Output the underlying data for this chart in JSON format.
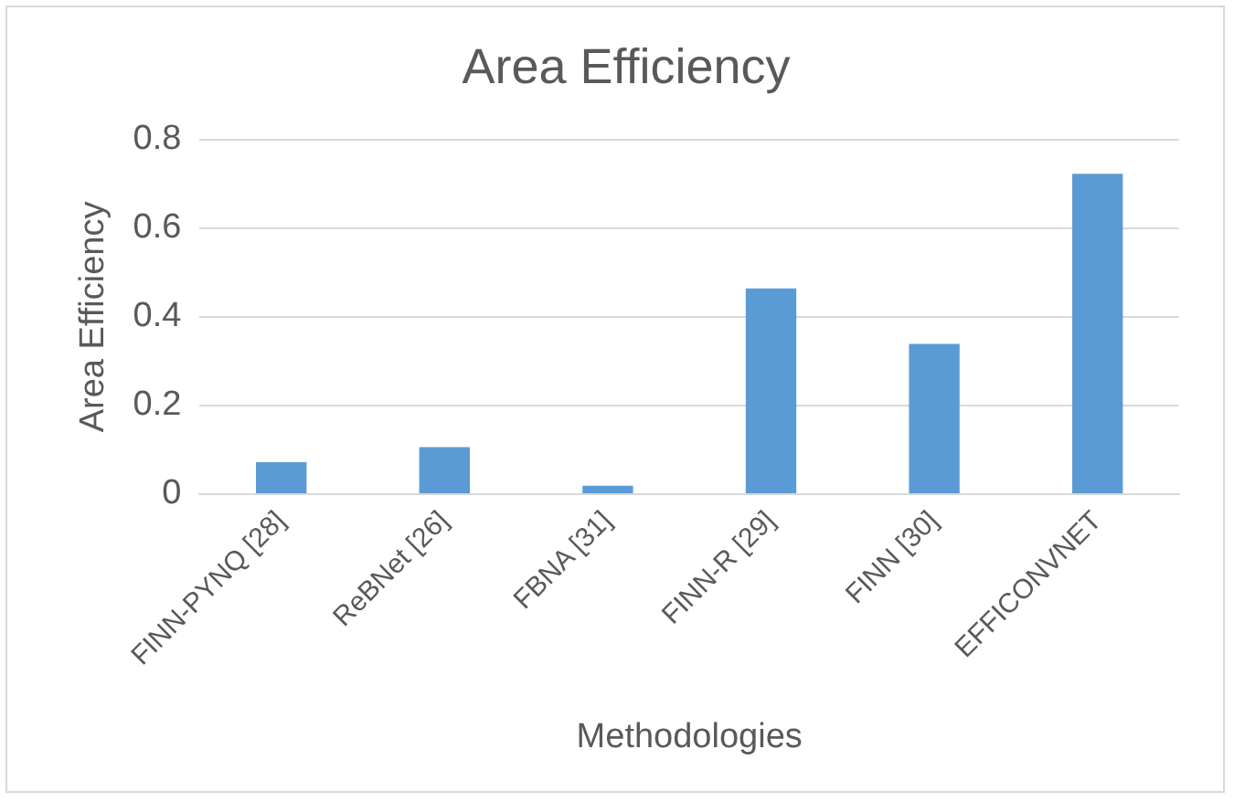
{
  "chart_data": {
    "type": "bar",
    "title": "Area Efficiency",
    "xlabel": "Methodologies",
    "ylabel": "Area Efficiency",
    "categories": [
      "FINN-PYNQ [28]",
      "ReBNet [26]",
      "FBNA [31]",
      "FINN-R [29]",
      "FINN [30]",
      "EFFICONVNET"
    ],
    "values": [
      0.072,
      0.106,
      0.019,
      0.464,
      0.339,
      0.723
    ],
    "color": "#5b9bd5",
    "ylim": [
      0,
      0.8
    ],
    "yticks": [
      0,
      0.2,
      0.4,
      0.6,
      0.8
    ],
    "grid": "y",
    "legend": false
  }
}
